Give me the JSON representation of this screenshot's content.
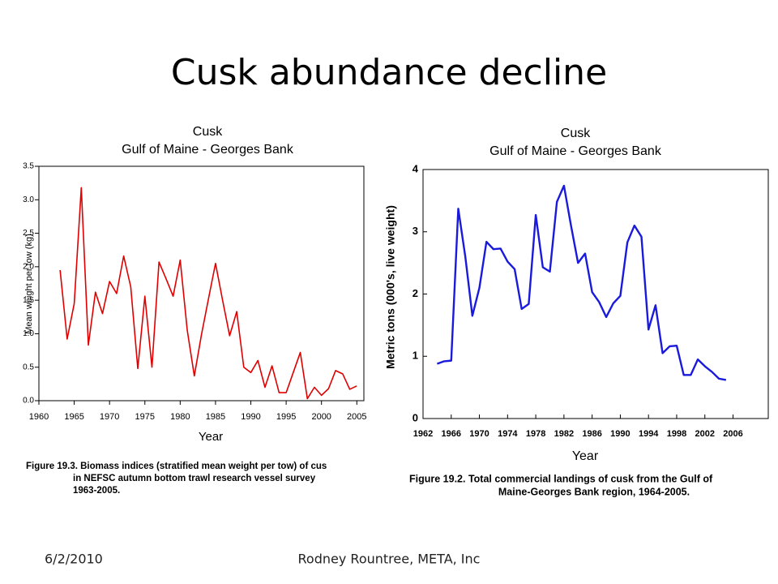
{
  "slide": {
    "title": "Cusk abundance decline",
    "date": "6/2/2010",
    "author": "Rodney Rountree,  META, Inc"
  },
  "chart_data": [
    {
      "type": "line",
      "title": "Cusk",
      "subtitle": "Gulf of Maine - Georges Bank",
      "x_label": "Year",
      "y_label": "Mean weight per tow (kg)",
      "caption": [
        "Figure 19.3.  Biomass indices (stratified mean weight per tow) of cus",
        "in NEFSC autumn bottom trawl research vessel survey",
        "1963-2005."
      ],
      "x": [
        1963,
        1964,
        1965,
        1966,
        1967,
        1968,
        1969,
        1970,
        1971,
        1972,
        1973,
        1974,
        1975,
        1976,
        1977,
        1978,
        1979,
        1980,
        1981,
        1982,
        1983,
        1984,
        1985,
        1986,
        1987,
        1988,
        1989,
        1990,
        1991,
        1992,
        1993,
        1994,
        1995,
        1996,
        1997,
        1998,
        1999,
        2000,
        2001,
        2002,
        2003,
        2004,
        2005
      ],
      "series": [
        {
          "color": "#e00000",
          "values": [
            1.95,
            0.92,
            1.45,
            3.18,
            0.83,
            1.62,
            1.3,
            1.78,
            1.6,
            2.16,
            1.7,
            0.48,
            1.56,
            0.5,
            2.07,
            1.82,
            1.56,
            2.1,
            1.05,
            0.37,
            0.98,
            1.52,
            2.05,
            1.5,
            0.97,
            1.33,
            0.5,
            0.42,
            0.6,
            0.2,
            0.52,
            0.12,
            0.12,
            0.42,
            0.72,
            0.03,
            0.2,
            0.08,
            0.18,
            0.45,
            0.4,
            0.17,
            0.22
          ]
        }
      ],
      "xlim": [
        1960,
        2006
      ],
      "xticks": [
        1960,
        1965,
        1970,
        1975,
        1980,
        1985,
        1990,
        1995,
        2000,
        2005
      ],
      "ylim": [
        0,
        3.5
      ],
      "yticks": [
        {
          "value": 0,
          "label": "0.0"
        },
        {
          "value": 0.5,
          "label": "0.5"
        },
        {
          "value": 1,
          "label": "1.0"
        },
        {
          "value": 1.5,
          "label": "1.5"
        },
        {
          "value": 2,
          "label": "2.0"
        },
        {
          "value": 2.5,
          "label": "2.5"
        },
        {
          "value": 3,
          "label": "3.0"
        },
        {
          "value": 3.5,
          "label": "3.5"
        }
      ],
      "grid": false
    },
    {
      "type": "line",
      "title": "Cusk",
      "subtitle": "Gulf of Maine - Georges Bank",
      "x_label": "Year",
      "y_label": "Metric tons (000's, live weight)",
      "caption": [
        "Figure 19.2. Total commercial landings of cusk from the Gulf of",
        "Maine-Georges Bank region, 1964-2005."
      ],
      "x": [
        1964,
        1965,
        1966,
        1967,
        1968,
        1969,
        1970,
        1971,
        1972,
        1973,
        1974,
        1975,
        1976,
        1977,
        1978,
        1979,
        1980,
        1981,
        1982,
        1983,
        1984,
        1985,
        1986,
        1987,
        1988,
        1989,
        1990,
        1991,
        1992,
        1993,
        1994,
        1995,
        1996,
        1997,
        1998,
        1999,
        2000,
        2001,
        2002,
        2003,
        2004,
        2005
      ],
      "series": [
        {
          "color": "#1a1adc",
          "values": [
            0.88,
            0.92,
            0.93,
            3.37,
            2.6,
            1.65,
            2.1,
            2.84,
            2.72,
            2.73,
            2.52,
            2.4,
            1.76,
            1.84,
            3.27,
            2.43,
            2.36,
            3.48,
            3.74,
            3.1,
            2.5,
            2.65,
            2.03,
            1.87,
            1.63,
            1.85,
            1.97,
            2.83,
            3.1,
            2.92,
            1.43,
            1.82,
            1.05,
            1.16,
            1.17,
            0.7,
            0.7,
            0.95,
            0.84,
            0.75,
            0.64,
            0.62
          ]
        }
      ],
      "xlim": [
        1962,
        2011
      ],
      "xticks": [
        1962,
        1966,
        1970,
        1974,
        1978,
        1982,
        1986,
        1990,
        1994,
        1998,
        2002,
        2006
      ],
      "ylim": [
        0,
        4
      ],
      "yticks": [
        0,
        1,
        2,
        3,
        4
      ],
      "grid": false
    }
  ]
}
